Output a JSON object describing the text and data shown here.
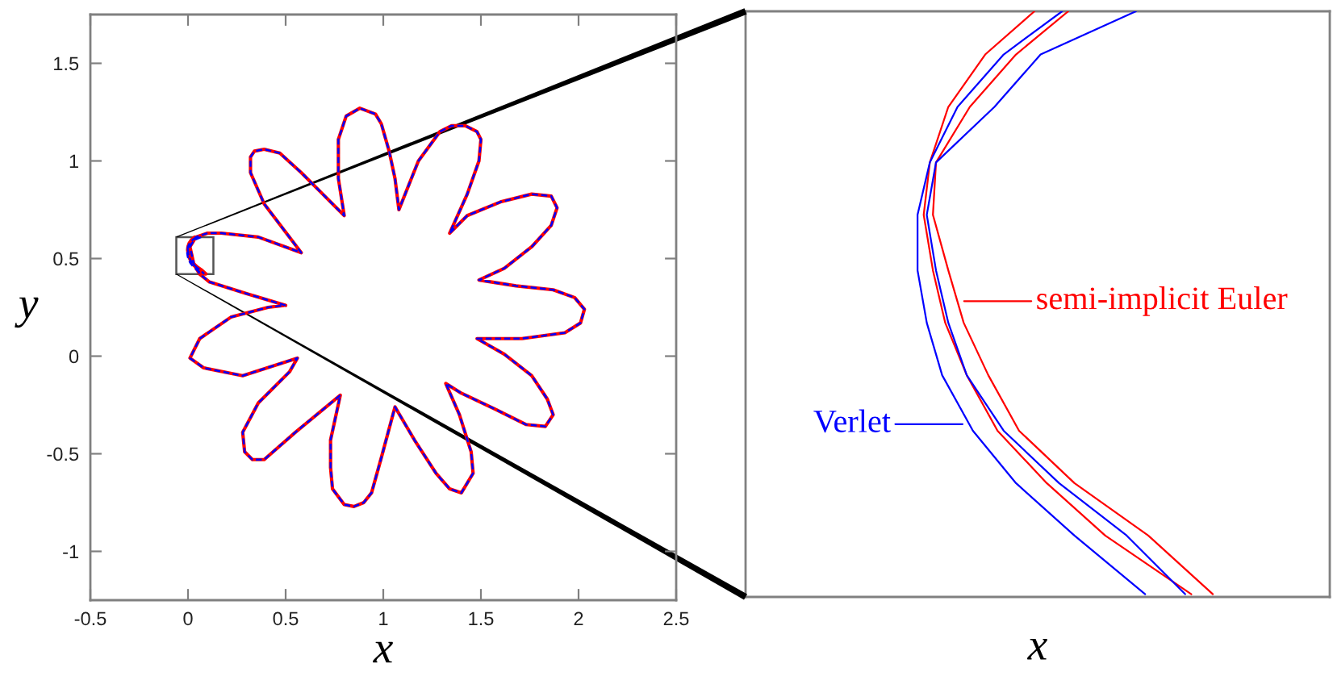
{
  "chart_data": {
    "type": "line",
    "xlabel": "x",
    "ylabel": "y",
    "xlim": [
      -0.5,
      2.5
    ],
    "ylim": [
      -1.25,
      1.75
    ],
    "xticks": [
      -0.5,
      0,
      0.5,
      1,
      1.5,
      2,
      2.5
    ],
    "yticks": [
      -1,
      -0.5,
      0,
      0.5,
      1,
      1.5
    ],
    "series": [
      {
        "name": "semi-implicit Euler",
        "color": "#ff0000",
        "line_style": "solid",
        "x": [
          0.5,
          0.3,
          0.11,
          0.06,
          0.03,
          0.01,
          0.04,
          0.1,
          0.17,
          0.36,
          0.58,
          0.39,
          0.32,
          0.32,
          0.34,
          0.39,
          0.47,
          0.58,
          0.69,
          0.8,
          0.77,
          0.77,
          0.81,
          0.88,
          0.96,
          0.99,
          1.03,
          1.06,
          1.08,
          1.18,
          1.29,
          1.35,
          1.42,
          1.48,
          1.5,
          1.49,
          1.43,
          1.34,
          1.43,
          1.6,
          1.76,
          1.86,
          1.89,
          1.86,
          1.76,
          1.62,
          1.49,
          1.68,
          1.87,
          1.98,
          2.03,
          2.01,
          1.93,
          1.71,
          1.48,
          1.62,
          1.76,
          1.84,
          1.87,
          1.83,
          1.73,
          1.57,
          1.4,
          1.32,
          1.39,
          1.45,
          1.46,
          1.4,
          1.34,
          1.27,
          1.16,
          1.06,
          0.99,
          0.94,
          0.9,
          0.85,
          0.8,
          0.74,
          0.73,
          0.73,
          0.78,
          0.55,
          0.39,
          0.33,
          0.29,
          0.28,
          0.36,
          0.52,
          0.56,
          0.28,
          0.08,
          0.01,
          0.06,
          0.22,
          0.41,
          0.49,
          null,
          0.045,
          0.028,
          0.013,
          0.002,
          0.001,
          0.006,
          0.011,
          0.019,
          0.029,
          0.047,
          0.071,
          0.092,
          null,
          0.034,
          0.018,
          0.006,
          0.0,
          -0.002,
          0.001,
          0.005,
          0.012,
          0.022,
          0.038,
          0.057,
          0.085
        ],
        "values": [
          0.26,
          0.32,
          0.38,
          0.42,
          0.47,
          0.56,
          0.61,
          0.63,
          0.63,
          0.61,
          0.53,
          0.78,
          0.94,
          1.02,
          1.05,
          1.06,
          1.04,
          0.94,
          0.83,
          0.72,
          0.91,
          1.11,
          1.23,
          1.27,
          1.24,
          1.19,
          1.05,
          0.91,
          0.75,
          1.0,
          1.15,
          1.18,
          1.18,
          1.15,
          1.11,
          1.0,
          0.83,
          0.63,
          0.72,
          0.79,
          0.83,
          0.82,
          0.76,
          0.67,
          0.56,
          0.45,
          0.39,
          0.36,
          0.34,
          0.3,
          0.24,
          0.17,
          0.12,
          0.09,
          0.09,
          0.01,
          -0.1,
          -0.22,
          -0.3,
          -0.36,
          -0.35,
          -0.27,
          -0.19,
          -0.14,
          -0.3,
          -0.49,
          -0.6,
          -0.7,
          -0.68,
          -0.6,
          -0.43,
          -0.26,
          -0.52,
          -0.7,
          -0.75,
          -0.77,
          -0.76,
          -0.68,
          -0.57,
          -0.43,
          -0.2,
          -0.39,
          -0.53,
          -0.53,
          -0.49,
          -0.39,
          -0.24,
          -0.08,
          -0.01,
          -0.1,
          -0.06,
          -0.01,
          0.09,
          0.2,
          0.25,
          0.26,
          null,
          0.61,
          0.596,
          0.579,
          0.561,
          0.544,
          0.526,
          0.509,
          0.492,
          0.474,
          0.457,
          0.44,
          0.421,
          null,
          0.61,
          0.596,
          0.579,
          0.561,
          0.544,
          0.526,
          0.509,
          0.492,
          0.474,
          0.457,
          0.44,
          0.421
        ]
      },
      {
        "name": "Verlet",
        "color": "#0000ff",
        "line_style": "dashed",
        "x": [
          0.5,
          0.3,
          0.11,
          0.06,
          0.03,
          0.01,
          0.04,
          0.1,
          0.17,
          0.36,
          0.58,
          0.39,
          0.32,
          0.32,
          0.34,
          0.39,
          0.47,
          0.58,
          0.69,
          0.8,
          0.77,
          0.77,
          0.81,
          0.88,
          0.96,
          0.99,
          1.03,
          1.06,
          1.08,
          1.18,
          1.29,
          1.35,
          1.42,
          1.48,
          1.5,
          1.49,
          1.43,
          1.34,
          1.43,
          1.6,
          1.76,
          1.86,
          1.89,
          1.86,
          1.76,
          1.62,
          1.49,
          1.68,
          1.87,
          1.98,
          2.03,
          2.01,
          1.93,
          1.71,
          1.48,
          1.62,
          1.76,
          1.84,
          1.87,
          1.83,
          1.73,
          1.57,
          1.4,
          1.32,
          1.39,
          1.45,
          1.46,
          1.4,
          1.34,
          1.27,
          1.16,
          1.06,
          0.99,
          0.94,
          0.9,
          0.85,
          0.8,
          0.74,
          0.73,
          0.73,
          0.78,
          0.55,
          0.39,
          0.33,
          0.29,
          0.28,
          0.36,
          0.52,
          0.56,
          0.28,
          0.08,
          0.01,
          0.06,
          0.22,
          0.41,
          0.49,
          null,
          0.067,
          0.036,
          0.021,
          0.002,
          -0.001,
          0.002,
          0.006,
          0.012,
          0.024,
          0.042,
          0.064,
          0.083,
          null,
          0.043,
          0.024,
          0.009,
          0.0,
          -0.004,
          -0.004,
          -0.001,
          0.004,
          0.014,
          0.028,
          0.047,
          0.07
        ],
        "values": [
          0.26,
          0.32,
          0.38,
          0.42,
          0.47,
          0.56,
          0.61,
          0.63,
          0.63,
          0.61,
          0.53,
          0.78,
          0.94,
          1.02,
          1.05,
          1.06,
          1.04,
          0.94,
          0.83,
          0.72,
          0.91,
          1.11,
          1.23,
          1.27,
          1.24,
          1.19,
          1.05,
          0.91,
          0.75,
          1.0,
          1.15,
          1.18,
          1.18,
          1.15,
          1.11,
          1.0,
          0.83,
          0.63,
          0.72,
          0.79,
          0.83,
          0.82,
          0.76,
          0.67,
          0.56,
          0.45,
          0.39,
          0.36,
          0.34,
          0.3,
          0.24,
          0.17,
          0.12,
          0.09,
          0.09,
          0.01,
          -0.1,
          -0.22,
          -0.3,
          -0.36,
          -0.35,
          -0.27,
          -0.19,
          -0.14,
          -0.3,
          -0.49,
          -0.6,
          -0.7,
          -0.68,
          -0.6,
          -0.43,
          -0.26,
          -0.52,
          -0.7,
          -0.75,
          -0.77,
          -0.76,
          -0.68,
          -0.57,
          -0.43,
          -0.2,
          -0.39,
          -0.53,
          -0.53,
          -0.49,
          -0.39,
          -0.24,
          -0.08,
          -0.01,
          -0.1,
          -0.06,
          -0.01,
          0.09,
          0.2,
          0.25,
          0.26,
          null,
          0.61,
          0.596,
          0.579,
          0.561,
          0.544,
          0.526,
          0.509,
          0.492,
          0.474,
          0.457,
          0.44,
          0.421,
          null,
          0.61,
          0.596,
          0.579,
          0.561,
          0.544,
          0.526,
          0.509,
          0.492,
          0.474,
          0.457,
          0.44,
          0.421
        ]
      }
    ]
  }
}
